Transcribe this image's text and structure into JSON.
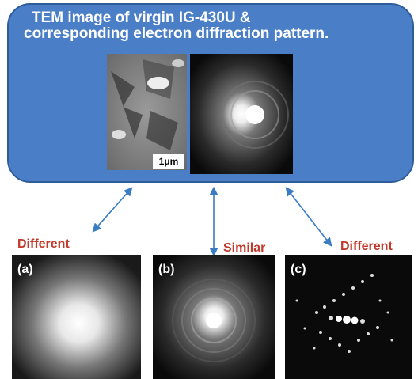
{
  "header": {
    "title_lines": [
      "TEM image of virgin IG-430U  &",
      "corresponding electron diffraction pattern."
    ]
  },
  "scale_bar": "1μm",
  "panels": [
    {
      "label": "(a)",
      "comparison": "Different"
    },
    {
      "label": "(b)",
      "comparison": "Similar"
    },
    {
      "label": "(c)",
      "comparison": "Different"
    }
  ]
}
